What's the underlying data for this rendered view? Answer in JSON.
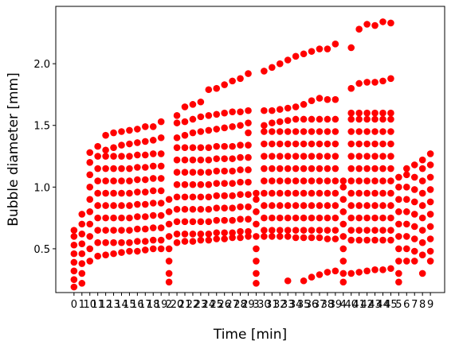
{
  "chart_data": {
    "type": "scatter",
    "xlabel": "Time [min]",
    "ylabel": "Bubble diameter [mm]",
    "color": "#ff0000",
    "categories": [
      "0",
      "1",
      "10",
      "11",
      "12",
      "13",
      "14",
      "15",
      "16",
      "17",
      "18",
      "19",
      "2",
      "20",
      "21",
      "22",
      "23",
      "24",
      "25",
      "26",
      "27",
      "28",
      "29",
      "3",
      "30",
      "31",
      "32",
      "33",
      "34",
      "35",
      "36",
      "37",
      "38",
      "39",
      "4",
      "40",
      "41",
      "42",
      "43",
      "44",
      "45",
      "5",
      "6",
      "7",
      "8",
      "9"
    ],
    "values": [
      [
        0.19,
        0.25,
        0.32,
        0.39,
        0.46,
        0.53,
        0.6,
        0.65
      ],
      [
        0.22,
        0.3,
        0.38,
        0.46,
        0.54,
        0.62,
        0.7,
        0.78
      ],
      [
        0.4,
        0.5,
        0.6,
        0.7,
        0.8,
        0.9,
        1.0,
        1.1,
        1.2,
        1.28
      ],
      [
        0.44,
        0.55,
        0.65,
        0.75,
        0.85,
        0.95,
        1.05,
        1.15,
        1.25,
        1.33
      ],
      [
        0.45,
        0.55,
        0.65,
        0.75,
        0.85,
        0.95,
        1.05,
        1.15,
        1.25,
        1.3,
        1.42
      ],
      [
        0.46,
        0.55,
        0.65,
        0.75,
        0.85,
        0.95,
        1.05,
        1.15,
        1.25,
        1.32,
        1.44
      ],
      [
        0.47,
        0.55,
        0.65,
        0.75,
        0.85,
        0.95,
        1.05,
        1.15,
        1.25,
        1.34,
        1.45
      ],
      [
        0.48,
        0.55,
        0.65,
        0.75,
        0.85,
        0.95,
        1.05,
        1.15,
        1.25,
        1.35,
        1.46
      ],
      [
        0.48,
        0.56,
        0.66,
        0.76,
        0.86,
        0.96,
        1.06,
        1.16,
        1.26,
        1.36,
        1.47
      ],
      [
        0.49,
        0.56,
        0.66,
        0.76,
        0.86,
        0.96,
        1.06,
        1.16,
        1.26,
        1.37,
        1.49
      ],
      [
        0.5,
        0.57,
        0.67,
        0.77,
        0.87,
        0.97,
        1.07,
        1.17,
        1.27,
        1.38,
        1.49
      ],
      [
        0.5,
        0.57,
        0.67,
        0.77,
        0.87,
        0.97,
        1.07,
        1.17,
        1.27,
        1.4,
        1.53
      ],
      [
        0.23,
        0.3,
        0.4,
        0.5,
        0.6,
        0.7,
        0.8,
        0.9
      ],
      [
        0.55,
        0.62,
        0.72,
        0.82,
        0.92,
        1.02,
        1.12,
        1.22,
        1.32,
        1.4,
        1.52,
        1.58
      ],
      [
        0.56,
        0.62,
        0.72,
        0.82,
        0.92,
        1.02,
        1.12,
        1.22,
        1.32,
        1.42,
        1.53,
        1.65
      ],
      [
        0.56,
        0.62,
        0.72,
        0.82,
        0.92,
        1.02,
        1.12,
        1.22,
        1.32,
        1.44,
        1.55,
        1.67
      ],
      [
        0.57,
        0.62,
        0.72,
        0.82,
        0.92,
        1.02,
        1.12,
        1.22,
        1.32,
        1.45,
        1.57,
        1.69
      ],
      [
        0.57,
        0.62,
        0.72,
        0.82,
        0.92,
        1.02,
        1.12,
        1.22,
        1.32,
        1.46,
        1.58,
        1.79
      ],
      [
        0.58,
        0.63,
        0.73,
        0.83,
        0.93,
        1.03,
        1.13,
        1.23,
        1.33,
        1.47,
        1.59,
        1.8
      ],
      [
        0.58,
        0.63,
        0.73,
        0.83,
        0.93,
        1.03,
        1.13,
        1.23,
        1.33,
        1.48,
        1.6,
        1.83
      ],
      [
        0.59,
        0.63,
        0.73,
        0.83,
        0.93,
        1.03,
        1.13,
        1.23,
        1.33,
        1.49,
        1.61,
        1.86
      ],
      [
        0.59,
        0.64,
        0.74,
        0.84,
        0.94,
        1.04,
        1.14,
        1.24,
        1.34,
        1.5,
        1.61,
        1.88
      ],
      [
        0.6,
        0.64,
        0.74,
        0.84,
        0.94,
        1.04,
        1.14,
        1.24,
        1.34,
        1.44,
        1.52,
        1.62,
        1.92
      ],
      [
        0.22,
        0.3,
        0.4,
        0.5,
        0.6,
        0.7,
        0.8,
        0.9,
        0.95
      ],
      [
        0.6,
        0.65,
        0.75,
        0.85,
        0.95,
        1.05,
        1.15,
        1.25,
        1.35,
        1.45,
        1.5,
        1.62,
        1.94
      ],
      [
        0.6,
        0.65,
        0.75,
        0.85,
        0.95,
        1.05,
        1.15,
        1.25,
        1.35,
        1.45,
        1.52,
        1.62,
        1.97
      ],
      [
        0.6,
        0.65,
        0.75,
        0.85,
        0.95,
        1.05,
        1.15,
        1.25,
        1.35,
        1.45,
        1.53,
        1.63,
        2.0
      ],
      [
        0.24,
        0.6,
        0.65,
        0.75,
        0.85,
        0.95,
        1.05,
        1.15,
        1.25,
        1.35,
        1.45,
        1.54,
        1.64,
        2.03
      ],
      [
        0.59,
        0.65,
        0.75,
        0.85,
        0.95,
        1.05,
        1.15,
        1.25,
        1.35,
        1.45,
        1.55,
        1.65,
        2.06
      ],
      [
        0.24,
        0.59,
        0.65,
        0.75,
        0.85,
        0.95,
        1.05,
        1.15,
        1.25,
        1.35,
        1.45,
        1.55,
        1.67,
        2.08
      ],
      [
        0.27,
        0.59,
        0.65,
        0.75,
        0.85,
        0.95,
        1.05,
        1.15,
        1.25,
        1.35,
        1.45,
        1.55,
        1.7,
        2.1
      ],
      [
        0.29,
        0.59,
        0.65,
        0.75,
        0.85,
        0.95,
        1.05,
        1.15,
        1.25,
        1.35,
        1.45,
        1.55,
        1.72,
        2.12
      ],
      [
        0.31,
        0.58,
        0.65,
        0.75,
        0.85,
        0.95,
        1.05,
        1.15,
        1.25,
        1.35,
        1.45,
        1.55,
        1.71,
        2.12
      ],
      [
        0.32,
        0.58,
        0.65,
        0.75,
        0.85,
        0.95,
        1.05,
        1.15,
        1.25,
        1.35,
        1.45,
        1.55,
        1.71,
        2.16
      ],
      [
        0.23,
        0.3,
        0.4,
        0.5,
        0.6,
        0.7,
        0.8,
        0.9,
        1.0,
        1.05
      ],
      [
        0.3,
        0.57,
        0.65,
        0.75,
        0.85,
        0.95,
        1.05,
        1.15,
        1.25,
        1.35,
        1.45,
        1.55,
        1.6,
        1.8,
        2.13
      ],
      [
        0.31,
        0.57,
        0.65,
        0.75,
        0.85,
        0.95,
        1.05,
        1.15,
        1.25,
        1.35,
        1.45,
        1.55,
        1.6,
        1.84,
        2.28
      ],
      [
        0.32,
        0.57,
        0.65,
        0.75,
        0.85,
        0.95,
        1.05,
        1.15,
        1.25,
        1.35,
        1.45,
        1.55,
        1.6,
        1.85,
        2.32
      ],
      [
        0.33,
        0.57,
        0.65,
        0.75,
        0.85,
        0.95,
        1.05,
        1.15,
        1.25,
        1.35,
        1.45,
        1.55,
        1.6,
        1.85,
        2.31
      ],
      [
        0.33,
        0.57,
        0.65,
        0.75,
        0.85,
        0.95,
        1.05,
        1.15,
        1.25,
        1.35,
        1.45,
        1.55,
        1.6,
        1.86,
        2.34
      ],
      [
        0.34,
        0.57,
        0.65,
        0.75,
        0.85,
        0.95,
        1.05,
        1.15,
        1.25,
        1.35,
        1.45,
        1.55,
        1.6,
        1.88,
        2.33
      ],
      [
        0.23,
        0.3,
        0.4,
        0.5,
        0.6,
        0.7,
        0.8,
        0.9,
        1.0,
        1.08
      ],
      [
        0.4,
        0.5,
        0.6,
        0.7,
        0.8,
        0.9,
        1.0,
        1.1,
        1.15
      ],
      [
        0.4,
        0.48,
        0.58,
        0.68,
        0.78,
        0.88,
        0.98,
        1.08,
        1.18
      ],
      [
        0.3,
        0.45,
        0.55,
        0.65,
        0.75,
        0.85,
        0.95,
        1.05,
        1.15,
        1.22
      ],
      [
        0.4,
        0.48,
        0.58,
        0.68,
        0.78,
        0.88,
        0.98,
        1.08,
        1.18,
        1.27
      ]
    ],
    "xlim": [
      -2.3,
      46.8
    ],
    "ylim": [
      0.145,
      2.465
    ],
    "yticks": [
      0.5,
      {
        "value": 1.0,
        "label": "1.0"
      },
      1.5,
      {
        "value": 2.0,
        "label": "2.0"
      }
    ]
  }
}
